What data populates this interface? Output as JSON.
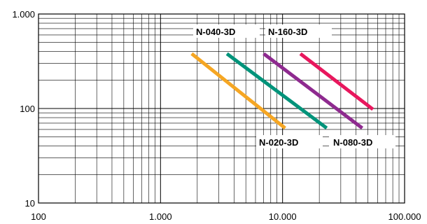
{
  "chart_data": {
    "type": "line",
    "x_scale": "log",
    "y_scale": "log",
    "xlim": [
      100,
      100000
    ],
    "ylim": [
      10,
      1000
    ],
    "x_tick_labels": [
      "100",
      "1.000",
      "10.000",
      "100.000"
    ],
    "x_tick_values": [
      100,
      1000,
      10000,
      100000
    ],
    "y_tick_labels": [
      "10",
      "100",
      "1.000"
    ],
    "y_tick_values": [
      10,
      100,
      1000
    ],
    "grid": true,
    "series": [
      {
        "name": "N-020-3D",
        "color": "#f5a623",
        "x": [
          1800,
          10500
        ],
        "y": [
          380,
          62
        ]
      },
      {
        "name": "N-040-3D",
        "color": "#00937a",
        "x": [
          3500,
          23000
        ],
        "y": [
          380,
          62
        ]
      },
      {
        "name": "N-080-3D",
        "color": "#8e2a8f",
        "x": [
          7000,
          45000
        ],
        "y": [
          380,
          62
        ]
      },
      {
        "name": "N-160-3D",
        "color": "#e8175d",
        "x": [
          14000,
          55000
        ],
        "y": [
          380,
          98
        ]
      }
    ]
  }
}
